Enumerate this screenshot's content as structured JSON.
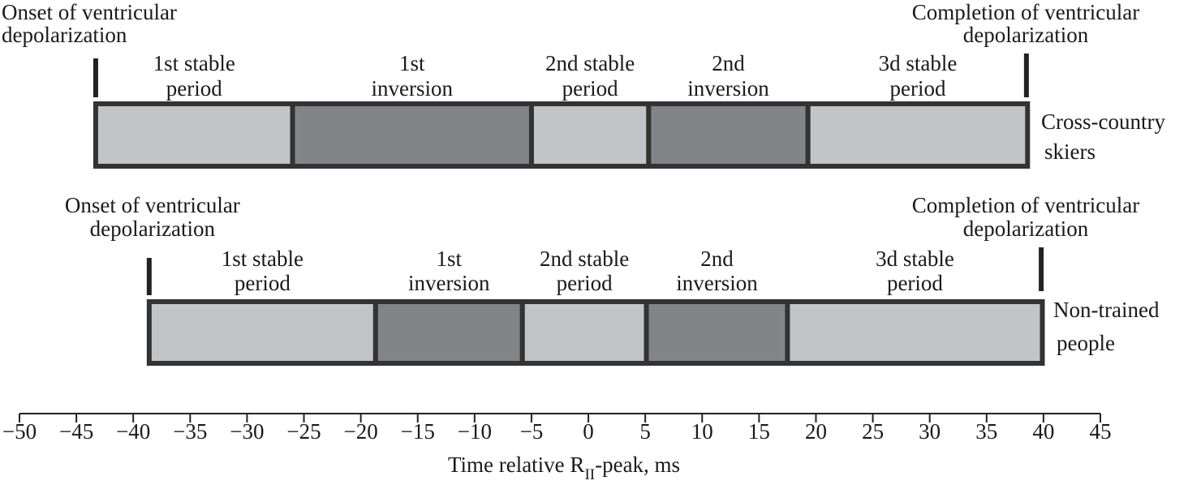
{
  "chart_data": {
    "type": "timeline",
    "xlim": [
      -50,
      45
    ],
    "xticks": [
      {
        "value": -50,
        "label": "−50"
      },
      {
        "value": -45,
        "label": "−45"
      },
      {
        "value": -40,
        "label": "−40"
      },
      {
        "value": -35,
        "label": "−35"
      },
      {
        "value": -30,
        "label": "−30"
      },
      {
        "value": -25,
        "label": "−25"
      },
      {
        "value": -20,
        "label": "−20"
      },
      {
        "value": -15,
        "label": "−15"
      },
      {
        "value": -10,
        "label": "−10"
      },
      {
        "value": -5,
        "label": "−5"
      },
      0,
      5,
      10,
      15,
      20,
      25,
      30,
      35,
      40,
      45
    ],
    "xlabel": [
      "Time relative R",
      "II",
      "-peak, ms"
    ],
    "border_color": "#333333",
    "rows": [
      {
        "name": [
          "Cross-country",
          "skiers"
        ],
        "onset": -43.3,
        "onset_label": [
          "Onset of ventricular",
          "depolarization"
        ],
        "completion": 38.5,
        "completion_label": [
          "Completion of ventricular",
          "depolarization"
        ],
        "segments": [
          {
            "label": [
              "1st stable",
              "period"
            ],
            "start": -43.3,
            "end": -26.0,
            "color": "#c3c4c6"
          },
          {
            "label": [
              "1st",
              "inversion"
            ],
            "start": -26.0,
            "end": -5.0,
            "color": "#838487"
          },
          {
            "label": [
              "2nd stable",
              "period"
            ],
            "start": -5.0,
            "end": 5.3,
            "color": "#c3c4c6"
          },
          {
            "label": [
              "2nd",
              "inversion"
            ],
            "start": 5.3,
            "end": 19.3,
            "color": "#838487"
          },
          {
            "label": [
              "3d stable",
              "period"
            ],
            "start": 19.3,
            "end": 38.6,
            "color": "#c3c4c6"
          }
        ]
      },
      {
        "name": [
          "Non-trained",
          "people"
        ],
        "onset": -38.6,
        "onset_label": [
          "Onset of ventricular",
          "depolarization"
        ],
        "completion": 39.8,
        "completion_label": [
          "Completion of ventricular",
          "depolarization"
        ],
        "segments": [
          {
            "label": [
              "1st stable",
              "period"
            ],
            "start": -38.6,
            "end": -18.7,
            "color": "#c3c4c6"
          },
          {
            "label": [
              "1st",
              "inversion"
            ],
            "start": -18.7,
            "end": -5.8,
            "color": "#838487"
          },
          {
            "label": [
              "2nd stable",
              "period"
            ],
            "start": -5.8,
            "end": 5.1,
            "color": "#c3c4c6"
          },
          {
            "label": [
              "2nd",
              "inversion"
            ],
            "start": 5.1,
            "end": 17.5,
            "color": "#838487"
          },
          {
            "label": [
              "3d stable",
              "period"
            ],
            "start": 17.5,
            "end": 39.9,
            "color": "#c3c4c6"
          }
        ]
      }
    ]
  }
}
